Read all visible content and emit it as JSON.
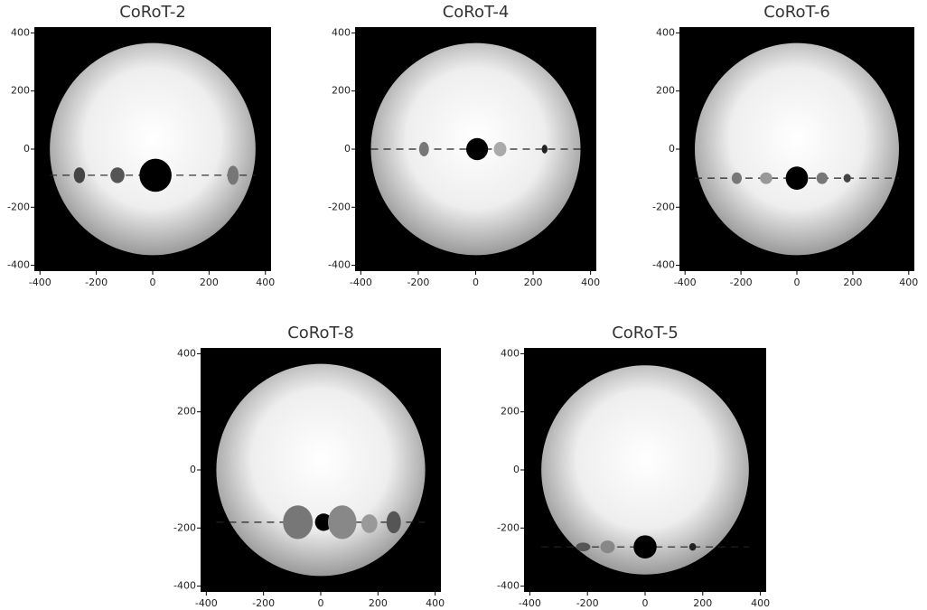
{
  "chart_data": [
    {
      "type": "starspots",
      "title": "CoRoT-2",
      "xlim": [
        -420,
        420
      ],
      "ylim": [
        -420,
        420
      ],
      "xticks": [
        -400,
        -200,
        0,
        200,
        400
      ],
      "yticks": [
        -400,
        -200,
        0,
        200,
        400
      ],
      "star_radius": 365,
      "chord_y": -90,
      "x": [
        -260,
        -125,
        10,
        285
      ],
      "y": [
        -90,
        -90,
        -90,
        -90
      ],
      "widths": [
        20,
        25,
        57,
        20
      ],
      "heights": [
        27,
        27,
        57,
        33
      ],
      "colors": [
        "#444",
        "#555",
        "#000",
        "#777"
      ]
    },
    {
      "type": "starspots",
      "title": "CoRoT-4",
      "xlim": [
        -420,
        420
      ],
      "ylim": [
        -420,
        420
      ],
      "xticks": [
        -400,
        -200,
        0,
        200,
        400
      ],
      "yticks": [
        -400,
        -200,
        0,
        200,
        400
      ],
      "star_radius": 365,
      "chord_y": 0,
      "x": [
        -180,
        5,
        85,
        240
      ],
      "y": [
        0,
        0,
        0,
        0
      ],
      "widths": [
        17,
        38,
        22,
        10
      ],
      "heights": [
        25,
        38,
        25,
        15
      ],
      "colors": [
        "#777",
        "#000",
        "#aaa",
        "#222"
      ]
    },
    {
      "type": "starspots",
      "title": "CoRoT-6",
      "xlim": [
        -420,
        420
      ],
      "ylim": [
        -420,
        420
      ],
      "xticks": [
        -400,
        -200,
        0,
        200,
        400
      ],
      "yticks": [
        -400,
        -200,
        0,
        200,
        400
      ],
      "star_radius": 365,
      "chord_y": -100,
      "x": [
        -215,
        -110,
        0,
        90,
        180
      ],
      "y": [
        -100,
        -100,
        -100,
        -100,
        -100
      ],
      "widths": [
        18,
        22,
        40,
        20,
        13
      ],
      "heights": [
        20,
        20,
        40,
        20,
        15
      ],
      "colors": [
        "#777",
        "#999",
        "#000",
        "#777",
        "#444"
      ]
    },
    {
      "type": "starspots",
      "title": "CoRoT-8",
      "xlim": [
        -420,
        420
      ],
      "ylim": [
        -420,
        420
      ],
      "xticks": [
        -400,
        -200,
        0,
        200,
        400
      ],
      "yticks": [
        -400,
        -200,
        0,
        200,
        400
      ],
      "star_radius": 365,
      "chord_y": -180,
      "x": [
        -80,
        10,
        75,
        170,
        255
      ],
      "y": [
        -180,
        -180,
        -180,
        -185,
        -180
      ],
      "widths": [
        52,
        30,
        50,
        28,
        25
      ],
      "heights": [
        58,
        30,
        58,
        32,
        38
      ],
      "colors": [
        "#777",
        "#000",
        "#888",
        "#999",
        "#555"
      ]
    },
    {
      "type": "starspots",
      "title": "CoRoT-5",
      "xlim": [
        -420,
        420
      ],
      "ylim": [
        -420,
        420
      ],
      "xticks": [
        -400,
        -200,
        0,
        200,
        400
      ],
      "yticks": [
        -400,
        -200,
        0,
        200,
        400
      ],
      "star_radius": 360,
      "chord_y": -265,
      "x": [
        -215,
        -130,
        0,
        165
      ],
      "y": [
        -265,
        -265,
        -265,
        -265
      ],
      "widths": [
        25,
        25,
        40,
        12
      ],
      "heights": [
        15,
        22,
        40,
        13
      ],
      "colors": [
        "#555",
        "#888",
        "#000",
        "#222"
      ]
    }
  ]
}
